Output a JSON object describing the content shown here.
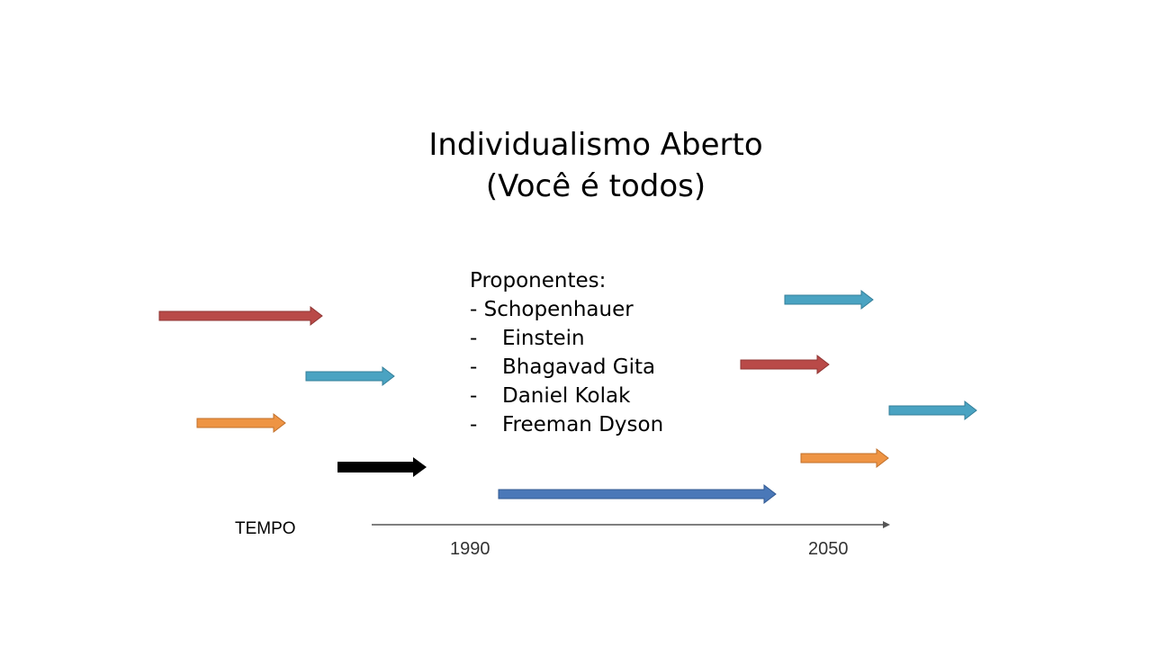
{
  "title": {
    "line1": "Individualismo Aberto",
    "line2": "(Você é todos)"
  },
  "proponents": {
    "heading": "Proponentes:",
    "first": "- Schopenhauer",
    "items": [
      {
        "bullet": "-",
        "name": "Einstein"
      },
      {
        "bullet": "-",
        "name": "Bhagavad Gita"
      },
      {
        "bullet": "-",
        "name": "Daniel Kolak"
      },
      {
        "bullet": "-",
        "name": "Freeman Dyson"
      }
    ]
  },
  "timeline": {
    "axis_label": "TEMPO",
    "ticks": [
      "1990",
      "2050"
    ]
  },
  "colors": {
    "red": "#b94a48",
    "teal": "#4aa3c2",
    "orange": "#ee9444",
    "black": "#000000",
    "blue": "#4a78b8",
    "axis": "#555555"
  }
}
